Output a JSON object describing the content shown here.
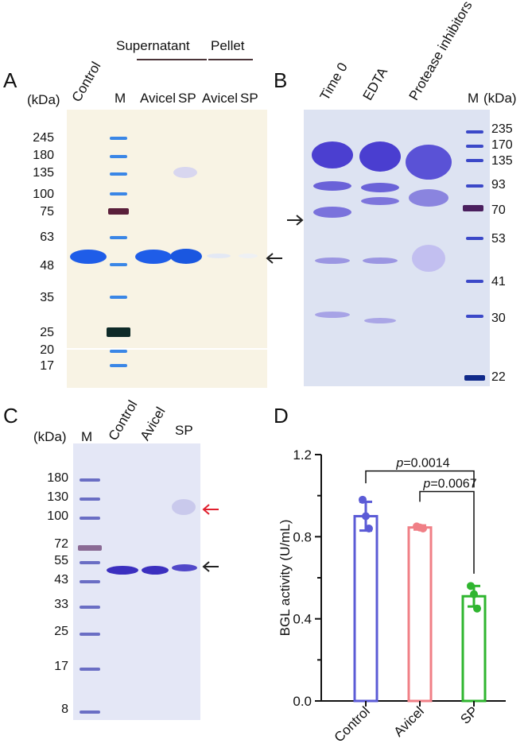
{
  "panelA": {
    "label": "A",
    "unit": "(kDa)",
    "lanes": [
      "Control",
      "M",
      "Avicel",
      "SP",
      "Avicel",
      "SP"
    ],
    "groups": [
      "Supernatant",
      "Pellet"
    ],
    "markers": [
      "245",
      "180",
      "135",
      "100",
      "75",
      "63",
      "48",
      "35",
      "25",
      "20",
      "17"
    ]
  },
  "panelB": {
    "label": "B",
    "lanes": [
      "Time 0",
      "EDTA",
      "Protease inhibitors"
    ],
    "marker_lane": "M",
    "unit": "(kDa)",
    "markers": [
      "235",
      "170",
      "135",
      "93",
      "70",
      "53",
      "41",
      "30",
      "22"
    ]
  },
  "panelC": {
    "label": "C",
    "unit": "(kDa)",
    "marker_lane": "M",
    "lanes": [
      "Control",
      "Avicel",
      "SP"
    ],
    "markers": [
      "180",
      "130",
      "100",
      "72",
      "55",
      "43",
      "33",
      "25",
      "17",
      "8"
    ]
  },
  "panelD": {
    "label": "D",
    "chart_data": {
      "type": "bar",
      "categories": [
        "Control",
        "Avicel",
        "SP"
      ],
      "values": [
        0.9,
        0.845,
        0.51
      ],
      "error": [
        0.07,
        0.01,
        0.05
      ],
      "points": [
        [
          0.98,
          0.9,
          0.84
        ],
        [
          0.85,
          0.845,
          0.84
        ],
        [
          0.56,
          0.52,
          0.45
        ]
      ],
      "colors": [
        "#5b5bd6",
        "#f07f86",
        "#2fb52f"
      ],
      "ylabel": "BGL activity (U/mL)",
      "yticks": [
        "0.0",
        "0.4",
        "0.8",
        "1.2"
      ],
      "ylim": [
        0,
        1.2
      ],
      "annotations": [
        {
          "from": 0,
          "to": 2,
          "text": "p=0.0014"
        },
        {
          "from": 1,
          "to": 2,
          "text": "p=0.0067"
        }
      ]
    }
  }
}
